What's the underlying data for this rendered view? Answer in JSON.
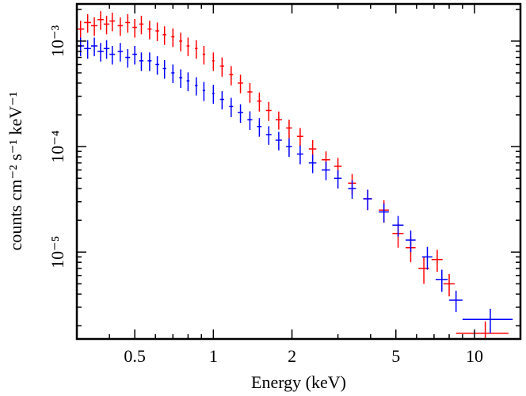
{
  "chart_data": {
    "type": "errorbar",
    "xlabel": "Energy (keV)",
    "ylabel": "counts cm⁻² s⁻¹ keV⁻¹",
    "xscale": "log",
    "yscale": "log",
    "xlim": [
      0.3,
      15
    ],
    "ylim": [
      1.5e-06,
      0.00225
    ],
    "xticks": [
      0.5,
      1,
      2,
      5,
      10
    ],
    "xminorticks": [
      0.3,
      0.4,
      0.6,
      0.7,
      0.8,
      0.9,
      3,
      4,
      6,
      7,
      8,
      9
    ],
    "yticks": [
      {
        "value": 1e-05,
        "label": "10⁻⁵"
      },
      {
        "value": 0.0001,
        "label": "10⁻⁴"
      },
      {
        "value": 0.001,
        "label": "10⁻³"
      }
    ],
    "yminorticks": [
      2e-06,
      3e-06,
      4e-06,
      5e-06,
      6e-06,
      7e-06,
      8e-06,
      9e-06,
      2e-05,
      3e-05,
      4e-05,
      5e-05,
      6e-05,
      7e-05,
      8e-05,
      9e-05,
      0.0002,
      0.0003,
      0.0004,
      0.0005,
      0.0006,
      0.0007,
      0.0008,
      0.0009,
      0.002
    ],
    "series": [
      {
        "color": "#ff0000",
        "x": [
          0.31,
          0.33,
          0.35,
          0.37,
          0.39,
          0.41,
          0.44,
          0.47,
          0.5,
          0.53,
          0.57,
          0.61,
          0.65,
          0.7,
          0.75,
          0.8,
          0.86,
          0.92,
          1.0,
          1.08,
          1.17,
          1.27,
          1.38,
          1.5,
          1.63,
          1.78,
          1.95,
          2.15,
          2.4,
          2.7,
          3.0,
          3.4,
          3.9,
          4.5,
          5.1,
          5.7,
          6.4,
          7.2,
          8.0,
          11.0
        ],
        "xerr": [
          0.01,
          0.01,
          0.01,
          0.01,
          0.01,
          0.01,
          0.01,
          0.01,
          0.01,
          0.01,
          0.01,
          0.01,
          0.01,
          0.01,
          0.01,
          0.01,
          0.01,
          0.01,
          0.01,
          0.02,
          0.02,
          0.03,
          0.03,
          0.03,
          0.04,
          0.05,
          0.05,
          0.06,
          0.08,
          0.1,
          0.1,
          0.12,
          0.15,
          0.2,
          0.25,
          0.25,
          0.3,
          0.35,
          0.4,
          2.5
        ],
        "values": [
          0.0013,
          0.0015,
          0.0014,
          0.0016,
          0.00145,
          0.00155,
          0.0014,
          0.0015,
          0.00135,
          0.00145,
          0.0013,
          0.00125,
          0.00115,
          0.0011,
          0.001,
          0.0009,
          0.00085,
          0.00075,
          0.00065,
          0.00058,
          0.00048,
          0.0004,
          0.00033,
          0.00027,
          0.00022,
          0.00018,
          0.00015,
          0.000125,
          9.5e-05,
          7.5e-05,
          6.5e-05,
          4.5e-05,
          3.2e-05,
          2.5e-05,
          1.5e-05,
          1.1e-05,
          7e-06,
          8.5e-06,
          5e-06,
          1.7e-06
        ],
        "yerr": [
          0.00026,
          0.0003,
          0.00028,
          0.00032,
          0.00029,
          0.00031,
          0.00028,
          0.0003,
          0.00027,
          0.00029,
          0.00026,
          0.00025,
          0.00023,
          0.00022,
          0.0002,
          0.00018,
          0.00017,
          0.00015,
          0.00013,
          0.00012,
          0.0001,
          8e-05,
          7e-05,
          5.5e-05,
          4.5e-05,
          3.5e-05,
          3e-05,
          2.5e-05,
          2e-05,
          1.5e-05,
          1.3e-05,
          1e-05,
          7e-06,
          6e-06,
          4e-06,
          3e-06,
          2e-06,
          2e-06,
          1.2e-06,
          5e-07
        ]
      },
      {
        "color": "#0000ff",
        "x": [
          0.31,
          0.33,
          0.35,
          0.37,
          0.39,
          0.41,
          0.44,
          0.47,
          0.5,
          0.53,
          0.57,
          0.61,
          0.65,
          0.7,
          0.75,
          0.8,
          0.86,
          0.92,
          1.0,
          1.08,
          1.17,
          1.27,
          1.38,
          1.5,
          1.63,
          1.78,
          1.95,
          2.15,
          2.4,
          2.7,
          3.0,
          3.4,
          3.9,
          4.5,
          5.1,
          5.7,
          6.6,
          7.5,
          8.5,
          11.5
        ],
        "xerr": [
          0.01,
          0.01,
          0.01,
          0.01,
          0.01,
          0.01,
          0.01,
          0.01,
          0.01,
          0.01,
          0.01,
          0.01,
          0.01,
          0.01,
          0.01,
          0.01,
          0.01,
          0.01,
          0.01,
          0.02,
          0.02,
          0.03,
          0.03,
          0.03,
          0.04,
          0.05,
          0.05,
          0.06,
          0.08,
          0.1,
          0.1,
          0.12,
          0.15,
          0.2,
          0.25,
          0.25,
          0.3,
          0.4,
          0.5,
          2.5
        ],
        "values": [
          0.0009,
          0.00085,
          0.0009,
          0.0008,
          0.00085,
          0.00075,
          0.0008,
          0.0007,
          0.00075,
          0.00065,
          0.00065,
          0.0006,
          0.00055,
          0.0005,
          0.00045,
          0.00042,
          0.00038,
          0.00034,
          0.00032,
          0.00028,
          0.00024,
          0.00021,
          0.00018,
          0.000155,
          0.00013,
          0.000115,
          0.0001,
          8.5e-05,
          7e-05,
          6e-05,
          5e-05,
          4e-05,
          3.2e-05,
          2.4e-05,
          1.8e-05,
          1.3e-05,
          9e-06,
          5.5e-06,
          3.5e-06,
          2.3e-06
        ],
        "yerr": [
          0.00018,
          0.00017,
          0.00018,
          0.00016,
          0.00017,
          0.00015,
          0.00016,
          0.00014,
          0.00015,
          0.00013,
          0.00013,
          0.00012,
          0.00011,
          0.0001,
          9e-05,
          8.5e-05,
          7.5e-05,
          7e-05,
          6.5e-05,
          5.5e-05,
          5e-05,
          4.2e-05,
          3.6e-05,
          3.1e-05,
          2.6e-05,
          2.3e-05,
          2e-05,
          1.7e-05,
          1.4e-05,
          1.2e-05,
          1e-05,
          8e-06,
          7e-06,
          5e-06,
          4e-06,
          3e-06,
          2.2e-06,
          1.3e-06,
          8e-07,
          6e-07
        ]
      }
    ]
  }
}
